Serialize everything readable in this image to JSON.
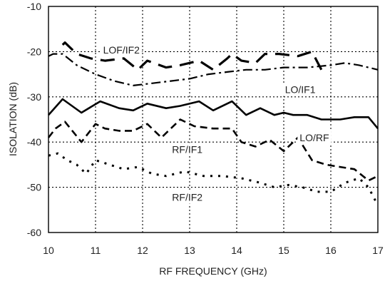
{
  "chart_data": {
    "type": "line",
    "title": "",
    "xlabel": "RF FREQUENCY (GHz)",
    "ylabel": "ISOLATION  (dB)",
    "xlim": [
      10,
      17
    ],
    "ylim": [
      -60,
      -10
    ],
    "xticks": [
      "10",
      "11",
      "12",
      "13",
      "14",
      "15",
      "16",
      "17"
    ],
    "yticks": [
      "-10",
      "-20",
      "-30",
      "-40",
      "-50",
      "-60"
    ],
    "grid": true,
    "series": [
      {
        "name": "LOF/IF2",
        "style": "long-dash",
        "x": [
          10.3,
          10.35,
          10.6,
          10.9,
          11.2,
          11.6,
          11.9,
          12.1,
          12.5,
          12.8,
          13.2,
          13.5,
          13.8,
          13.9,
          14.1,
          14.4,
          14.6,
          14.9,
          15.3,
          15.6,
          15.8
        ],
        "y": [
          -18.5,
          -18,
          -20.5,
          -21.5,
          -22,
          -21.5,
          -24,
          -22,
          -23.5,
          -23,
          -22,
          -24,
          -21.5,
          -20.5,
          -22,
          -22.5,
          -20.5,
          -20.5,
          -21,
          -20,
          -24
        ]
      },
      {
        "name": "LO/IF1",
        "style": "dash-dot",
        "x": [
          10.0,
          10.1,
          10.3,
          10.6,
          11.0,
          11.4,
          11.8,
          12.2,
          12.6,
          13.0,
          13.4,
          13.8,
          14.2,
          14.6,
          15.0,
          15.5,
          16.0,
          16.3,
          16.6,
          17.0
        ],
        "y": [
          -21,
          -20.5,
          -20.5,
          -23,
          -25,
          -26.5,
          -27.5,
          -27,
          -26.5,
          -26,
          -25,
          -24.5,
          -24,
          -24,
          -23.5,
          -23.5,
          -23,
          -22.5,
          -23,
          -24
        ]
      },
      {
        "name": "LO/RF",
        "style": "solid",
        "x": [
          10.0,
          10.3,
          10.7,
          11.1,
          11.5,
          11.8,
          12.1,
          12.5,
          12.8,
          13.2,
          13.5,
          13.9,
          14.2,
          14.5,
          14.8,
          15.0,
          15.2,
          15.5,
          15.8,
          16.2,
          16.5,
          16.8,
          17.0
        ],
        "y": [
          -34,
          -30.5,
          -33.5,
          -31,
          -32.5,
          -33,
          -31.5,
          -32.5,
          -32,
          -31,
          -33,
          -31,
          -34,
          -32.5,
          -34,
          -33.5,
          -34,
          -34,
          -35,
          -35,
          -34.5,
          -34.5,
          -37
        ]
      },
      {
        "name": "RF/IF1",
        "style": "medium-dash",
        "x": [
          10.0,
          10.15,
          10.35,
          10.7,
          11.0,
          11.2,
          11.5,
          11.8,
          12.1,
          12.4,
          12.8,
          13.1,
          13.5,
          13.9,
          14.1,
          14.4,
          14.7,
          15.0,
          15.3,
          15.6,
          15.9,
          16.2,
          16.5,
          16.8,
          17.0
        ],
        "y": [
          -39,
          -37,
          -35.5,
          -40,
          -36,
          -37,
          -37.5,
          -37.5,
          -36,
          -39,
          -35,
          -36.5,
          -37,
          -37,
          -40,
          -41,
          -39.5,
          -42,
          -39,
          -44,
          -45,
          -45.5,
          -46,
          -48.5,
          -47.5
        ]
      },
      {
        "name": "RF/IF2",
        "style": "dotted",
        "x": [
          10.0,
          10.2,
          10.4,
          10.6,
          10.8,
          11.0,
          11.3,
          11.6,
          11.9,
          12.2,
          12.5,
          12.9,
          13.3,
          13.7,
          14.1,
          14.5,
          14.8,
          15.1,
          15.4,
          15.7,
          16.0,
          16.3,
          16.6,
          16.8,
          17.0
        ],
        "y": [
          -43,
          -42.5,
          -44,
          -45,
          -47,
          -44,
          -45,
          -46,
          -45.5,
          -47,
          -47.5,
          -46.5,
          -47.5,
          -47.5,
          -48,
          -49,
          -50,
          -49.5,
          -50,
          -51,
          -51,
          -49,
          -48,
          -50,
          -54
        ]
      }
    ],
    "annotations": [
      {
        "text": "LOF/IF2",
        "x": 11.55,
        "y": -19.6
      },
      {
        "text": "LO/IF1",
        "x": 15.35,
        "y": -28.4
      },
      {
        "text": "LO/RF",
        "x": 15.65,
        "y": -39.0
      },
      {
        "text": "RF/IF1",
        "x": 12.95,
        "y": -41.6
      },
      {
        "text": "RF/IF2",
        "x": 12.95,
        "y": -52.2
      }
    ]
  }
}
